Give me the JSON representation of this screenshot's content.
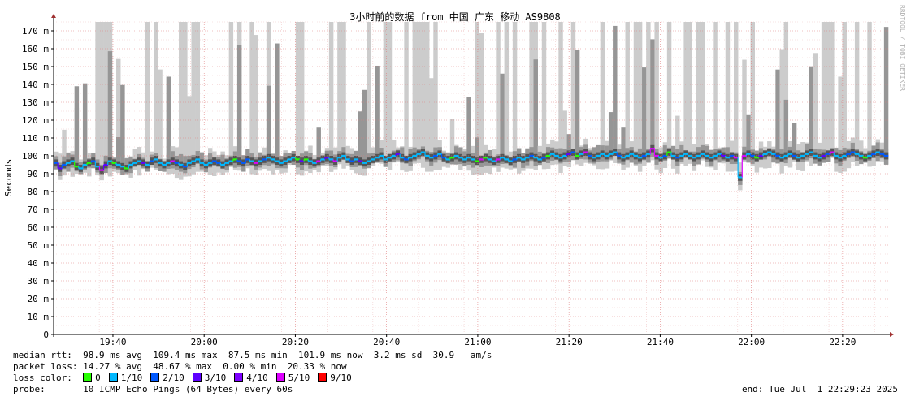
{
  "watermark": "RRDTOOL / TOBI OETIKER",
  "stats": {
    "median_rtt_label": "median rtt:",
    "median_rtt_values": "98.9 ms avg  109.4 ms max  87.5 ms min  101.9 ms now  3.2 ms sd  30.9   am/s",
    "packet_loss_label": "packet loss:",
    "packet_loss_values": "14.27 % avg  48.67 % max  0.00 % min  20.33 % now",
    "loss_color_label": "loss color:",
    "loss_colors": [
      {
        "label": "0",
        "color": "#26ff00"
      },
      {
        "label": "1/10",
        "color": "#00b8ff"
      },
      {
        "label": "2/10",
        "color": "#0059ff"
      },
      {
        "label": "3/10",
        "color": "#5e00ff"
      },
      {
        "label": "4/10",
        "color": "#7e00ff"
      },
      {
        "label": "5/10",
        "color": "#dd00ff"
      },
      {
        "label": "9/10",
        "color": "#ff0000"
      }
    ],
    "probe_label": "probe:",
    "probe_values": "10 ICMP Echo Pings (64 Bytes) every 60s",
    "end": "end: Tue Jul  1 22:29:23 2025"
  },
  "chart_data": {
    "type": "line",
    "title": "3小时前的数据 from 中国 广东 移动 AS9808",
    "ylabel": "Seconds",
    "ylim": [
      0,
      175
    ],
    "ytick_values": [
      0,
      10,
      20,
      30,
      40,
      50,
      60,
      70,
      80,
      90,
      100,
      110,
      120,
      130,
      140,
      150,
      160,
      170
    ],
    "yticks": [
      "0",
      "10 m",
      "20 m",
      "30 m",
      "40 m",
      "50 m",
      "60 m",
      "70 m",
      "80 m",
      "90 m",
      "100 m",
      "110 m",
      "120 m",
      "130 m",
      "140 m",
      "150 m",
      "160 m",
      "170 m"
    ],
    "xlim_minutes": [
      1167,
      1350
    ],
    "xtick_minutes": [
      1180,
      1200,
      1220,
      1240,
      1260,
      1280,
      1300,
      1320,
      1340
    ],
    "xticks": [
      "19:40",
      "20:00",
      "20:20",
      "20:40",
      "21:00",
      "21:20",
      "21:40",
      "22:00",
      "22:20"
    ],
    "grid": true,
    "series": [
      {
        "values": [
          96,
          93,
          95,
          96,
          97,
          94,
          93,
          95,
          96,
          97,
          94,
          92,
          95,
          97,
          96,
          95,
          94,
          93,
          95,
          96,
          97,
          96,
          95,
          97,
          98,
          96,
          95,
          96,
          97,
          96,
          95,
          94,
          96,
          97,
          98,
          96,
          95,
          96,
          97,
          96,
          95,
          96,
          97,
          98,
          97,
          96,
          98,
          97,
          96,
          97,
          98,
          99,
          98,
          97,
          96,
          97,
          98,
          99,
          98,
          97,
          98,
          97,
          96,
          97,
          98,
          99,
          98,
          97,
          99,
          100,
          98,
          97,
          98,
          97,
          96,
          97,
          98,
          99,
          100,
          98,
          99,
          100,
          101,
          99,
          98,
          99,
          100,
          101,
          102,
          100,
          99,
          100,
          101,
          99,
          98,
          99,
          100,
          99,
          98,
          99,
          98,
          97,
          98,
          99,
          98,
          97,
          98,
          99,
          98,
          97,
          98,
          99,
          98,
          99,
          100,
          99,
          98,
          99,
          100,
          101,
          100,
          99,
          100,
          101,
          102,
          100,
          101,
          102,
          100,
          99,
          100,
          101,
          100,
          101,
          102,
          100,
          99,
          100,
          101,
          100,
          99,
          100,
          101,
          104,
          100,
          99,
          100,
          102,
          100,
          99,
          100,
          101,
          100,
          99,
          100,
          101,
          100,
          99,
          100,
          101,
          100,
          99,
          100,
          99,
          88,
          100,
          101,
          100,
          99,
          100,
          101,
          102,
          101,
          100,
          99,
          100,
          101,
          100,
          99,
          100,
          101,
          102,
          100,
          99,
          100,
          101,
          102,
          100,
          99,
          100,
          101,
          102,
          101,
          100,
          99,
          100,
          101,
          102,
          101,
          100
        ]
      }
    ]
  }
}
